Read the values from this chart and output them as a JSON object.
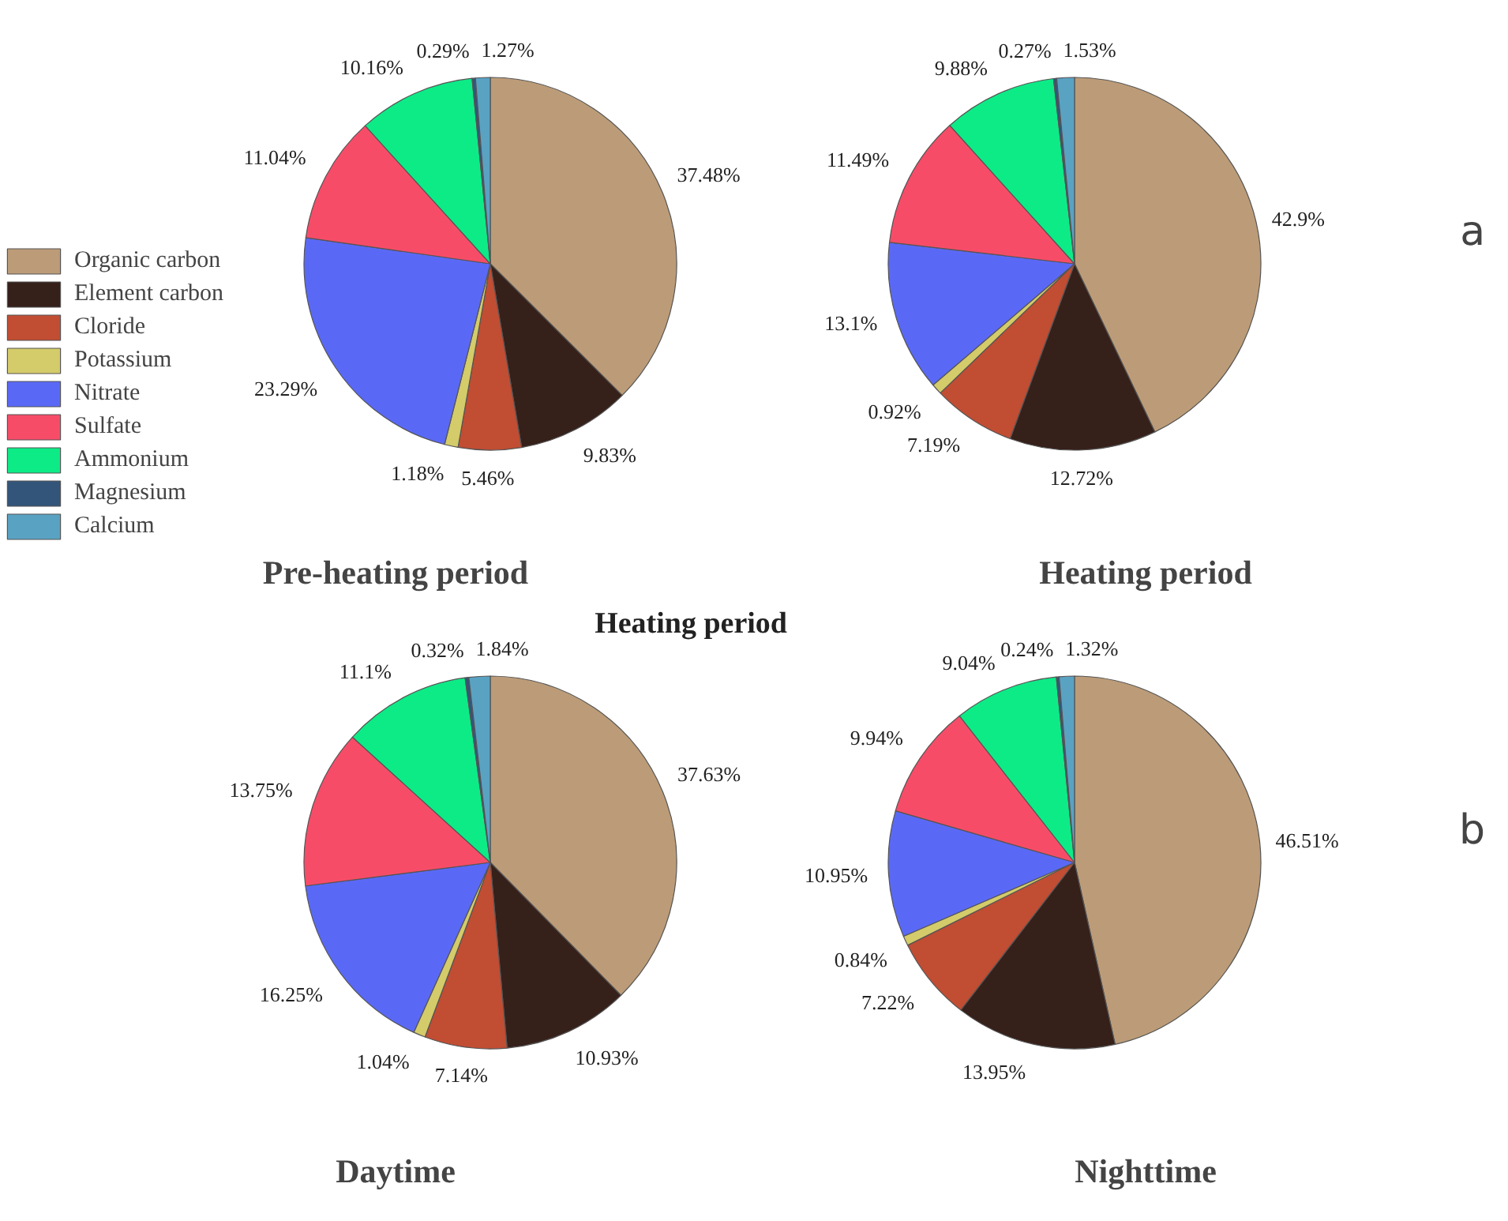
{
  "chart_data": [
    {
      "type": "pie",
      "title": "Pre-heating period",
      "categories": [
        "Organic carbon",
        "Element carbon",
        "Cloride",
        "Potassium",
        "Nitrate",
        "Sulfate",
        "Ammonium",
        "Magnesium",
        "Calcium"
      ],
      "values": [
        37.48,
        9.83,
        5.46,
        1.18,
        23.29,
        11.04,
        10.16,
        0.29,
        1.27
      ],
      "value_labels": [
        "37.48%",
        "9.83%",
        "5.46%",
        "1.18%",
        "23.29%",
        "11.04%",
        "10.16%",
        "0.29%",
        "1.27%"
      ],
      "colors": [
        "#bc9c78",
        "#36201a",
        "#c14d33",
        "#d4cb6a",
        "#5a69f5",
        "#f74c68",
        "#0deb87",
        "#33557a",
        "#5aa2c2"
      ],
      "legend": "bottom left"
    },
    {
      "type": "pie",
      "title": "Heating period",
      "annotations": [
        "a"
      ],
      "values": [
        42.9,
        12.72,
        7.19,
        0.92,
        13.1,
        11.49,
        9.88,
        0.27,
        1.53
      ],
      "value_labels": [
        "42.9%",
        "12.72%",
        "7.19%",
        "0.92%",
        "13.1%",
        "11.49%",
        "9.88%",
        "0.27%",
        "1.53%"
      ],
      "colors": [
        "#bc9c78",
        "#36201a",
        "#c14d33",
        "#d4cb6a",
        "#5a69f5",
        "#f74c68",
        "#0deb87",
        "#33557a",
        "#5aa2c2"
      ]
    },
    {
      "type": "pie",
      "title": "Daytime",
      "annotations": [
        "Heating period"
      ],
      "values": [
        37.63,
        10.93,
        7.14,
        1.04,
        16.25,
        13.75,
        11.1,
        0.32,
        1.84
      ],
      "value_labels": [
        "37.63%",
        "10.93%",
        "7.14%",
        "1.04%",
        "16.25%",
        "13.75%",
        "11.1%",
        "0.32%",
        "1.84%"
      ],
      "colors": [
        "#bc9c78",
        "#36201a",
        "#c14d33",
        "#d4cb6a",
        "#5a69f5",
        "#f74c68",
        "#0deb87",
        "#33557a",
        "#5aa2c2"
      ]
    },
    {
      "type": "pie",
      "title": "Nighttime",
      "annotations": [
        "b"
      ],
      "values": [
        46.51,
        13.95,
        7.22,
        0.84,
        10.95,
        9.94,
        9.04,
        0.24,
        1.32
      ],
      "value_labels": [
        "46.51%",
        "13.95%",
        "7.22%",
        "0.84%",
        "10.95%",
        "9.94%",
        "9.04%",
        "0.24%",
        "1.32%"
      ],
      "colors": [
        "#bc9c78",
        "#36201a",
        "#c14d33",
        "#d4cb6a",
        "#5a69f5",
        "#f74c68",
        "#0deb87",
        "#33557a",
        "#5aa2c2"
      ]
    }
  ]
}
